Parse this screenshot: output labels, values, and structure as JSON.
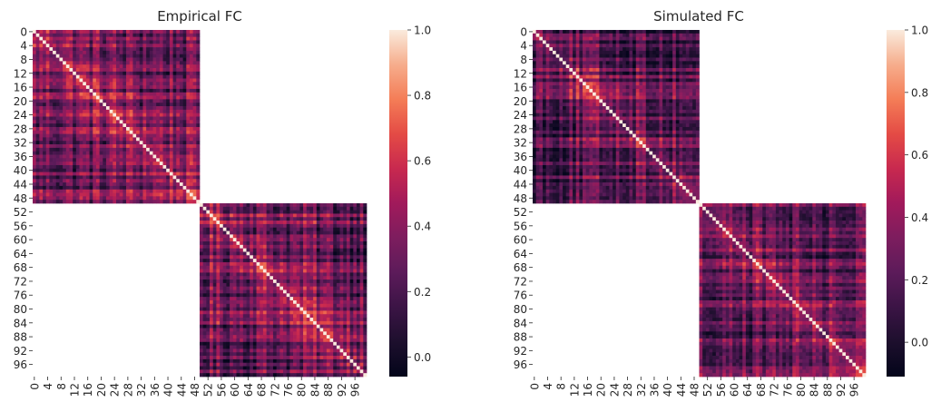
{
  "chart_data": [
    {
      "type": "heatmap",
      "title": "Empirical FC",
      "n": 100,
      "blocks": [
        [
          0,
          49
        ],
        [
          50,
          99
        ]
      ],
      "x_ticks": [
        0,
        4,
        8,
        12,
        16,
        20,
        24,
        28,
        32,
        36,
        40,
        44,
        48,
        52,
        56,
        60,
        64,
        68,
        72,
        76,
        80,
        84,
        88,
        92,
        96
      ],
      "y_ticks": [
        0,
        4,
        8,
        12,
        16,
        20,
        24,
        28,
        32,
        36,
        40,
        44,
        48,
        52,
        56,
        60,
        64,
        68,
        72,
        76,
        80,
        84,
        88,
        92,
        96
      ],
      "colorbar": {
        "min": -0.06,
        "max": 1.0,
        "ticks": [
          -0.0,
          0.2,
          0.4,
          0.6,
          0.8,
          1.0
        ],
        "tick_labels": [
          "0.0",
          "0.2",
          "0.4",
          "0.6",
          "0.8",
          "1.0"
        ]
      },
      "diagonal": 1.0,
      "off_block_values": "empty",
      "value_range_within_blocks": [
        -0.05,
        0.75
      ],
      "typical_value": 0.3
    },
    {
      "type": "heatmap",
      "title": "Simulated FC",
      "n": 100,
      "blocks": [
        [
          0,
          49
        ],
        [
          50,
          99
        ]
      ],
      "x_ticks": [
        0,
        4,
        8,
        12,
        16,
        20,
        24,
        28,
        32,
        36,
        40,
        44,
        48,
        52,
        56,
        60,
        64,
        68,
        72,
        76,
        80,
        84,
        88,
        92,
        96
      ],
      "y_ticks": [
        0,
        4,
        8,
        12,
        16,
        20,
        24,
        28,
        32,
        36,
        40,
        44,
        48,
        52,
        56,
        60,
        64,
        68,
        72,
        76,
        80,
        84,
        88,
        92,
        96
      ],
      "colorbar": {
        "min": -0.11,
        "max": 1.0,
        "ticks": [
          -0.0,
          0.2,
          0.4,
          0.6,
          0.8,
          1.0
        ],
        "tick_labels": [
          "0.0",
          "0.2",
          "0.4",
          "0.6",
          "0.8",
          "1.0"
        ]
      },
      "diagonal": 1.0,
      "off_block_values": "empty",
      "value_range_within_blocks": [
        -0.1,
        0.85
      ],
      "typical_value": 0.2
    }
  ]
}
